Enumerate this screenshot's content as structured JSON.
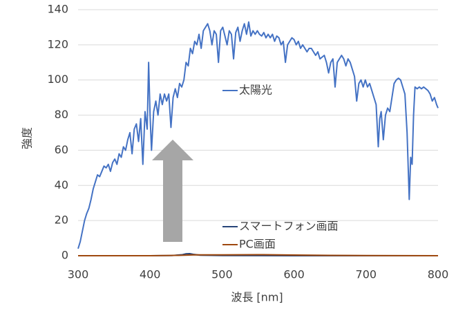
{
  "chart_data": {
    "type": "line",
    "xlabel": "波長 [nm]",
    "ylabel": "強度",
    "xlim": [
      300,
      800
    ],
    "xticks": [
      300,
      400,
      500,
      600,
      700,
      800
    ],
    "ylim": [
      0,
      140
    ],
    "yticks": [
      0,
      20,
      40,
      60,
      80,
      100,
      120,
      140
    ],
    "grid": true,
    "series": [
      {
        "name": "太陽光",
        "color": "#4472c4",
        "x": [
          300,
          303,
          306,
          309,
          312,
          315,
          318,
          321,
          324,
          327,
          330,
          333,
          336,
          339,
          342,
          345,
          348,
          351,
          354,
          357,
          360,
          363,
          366,
          369,
          372,
          375,
          378,
          381,
          384,
          387,
          390,
          393,
          396,
          398,
          400,
          402,
          405,
          408,
          411,
          414,
          417,
          420,
          423,
          426,
          429,
          432,
          435,
          438,
          441,
          444,
          447,
          450,
          453,
          456,
          459,
          462,
          465,
          468,
          471,
          474,
          477,
          480,
          483,
          486,
          489,
          492,
          495,
          498,
          501,
          504,
          507,
          510,
          513,
          516,
          519,
          522,
          525,
          528,
          531,
          534,
          537,
          540,
          543,
          546,
          549,
          552,
          555,
          558,
          561,
          564,
          567,
          570,
          573,
          576,
          579,
          582,
          585,
          588,
          591,
          594,
          597,
          600,
          603,
          606,
          609,
          612,
          615,
          618,
          621,
          624,
          627,
          630,
          633,
          636,
          639,
          642,
          645,
          648,
          651,
          654,
          657,
          660,
          663,
          666,
          669,
          672,
          675,
          678,
          681,
          684,
          687,
          690,
          693,
          696,
          699,
          702,
          705,
          708,
          711,
          714,
          717,
          719,
          721,
          724,
          727,
          730,
          733,
          736,
          739,
          742,
          745,
          748,
          751,
          754,
          757,
          760,
          762,
          764,
          766,
          768,
          771,
          774,
          777,
          780,
          783,
          786,
          789,
          792,
          795,
          798,
          800
        ],
        "values": [
          4,
          8,
          14,
          20,
          24,
          27,
          32,
          38,
          42,
          46,
          45,
          48,
          51,
          50,
          52,
          48,
          53,
          55,
          52,
          58,
          56,
          62,
          60,
          66,
          70,
          58,
          72,
          75,
          65,
          78,
          52,
          82,
          72,
          110,
          80,
          60,
          82,
          88,
          80,
          92,
          86,
          92,
          88,
          92,
          73,
          90,
          95,
          90,
          98,
          96,
          100,
          110,
          108,
          118,
          115,
          122,
          120,
          126,
          118,
          128,
          130,
          132,
          128,
          120,
          128,
          126,
          110,
          128,
          130,
          125,
          120,
          128,
          126,
          112,
          127,
          130,
          122,
          128,
          132,
          126,
          133,
          125,
          128,
          126,
          128,
          126,
          125,
          127,
          124,
          126,
          124,
          126,
          122,
          125,
          124,
          120,
          122,
          110,
          120,
          122,
          124,
          123,
          120,
          122,
          118,
          120,
          118,
          116,
          118,
          118,
          116,
          114,
          116,
          112,
          113,
          114,
          110,
          104,
          110,
          112,
          96,
          110,
          112,
          114,
          112,
          108,
          112,
          110,
          106,
          102,
          88,
          98,
          100,
          96,
          100,
          96,
          98,
          94,
          90,
          86,
          62,
          78,
          82,
          66,
          80,
          84,
          82,
          90,
          98,
          100,
          101,
          100,
          96,
          92,
          70,
          32,
          56,
          52,
          80,
          96,
          95,
          96,
          95,
          96,
          95,
          94,
          92,
          88,
          90,
          86,
          84
        ]
      },
      {
        "name": "スマートフォン画面",
        "color": "#264478",
        "x": [
          300,
          400,
          430,
          445,
          450,
          455,
          460,
          470,
          500,
          600,
          700,
          800
        ],
        "values": [
          0,
          0,
          0.1,
          0.6,
          1.1,
          1.2,
          0.8,
          0.3,
          0.1,
          0,
          0,
          0
        ]
      },
      {
        "name": "PC画面",
        "color": "#9e480e",
        "x": [
          300,
          400,
          440,
          460,
          500,
          550,
          600,
          650,
          700,
          800
        ],
        "values": [
          0,
          0,
          0.2,
          0.5,
          0.5,
          0.6,
          0.4,
          0.2,
          0.1,
          0
        ]
      }
    ]
  }
}
